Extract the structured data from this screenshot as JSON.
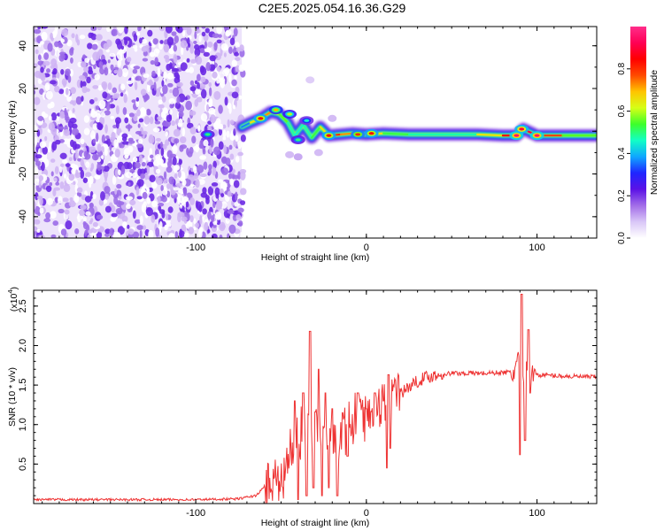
{
  "title": "C2E5.2025.054.16.36.G29",
  "colors": {
    "snr_line": "#ee3333",
    "colormap": [
      "#ffffff",
      "#d9c6f7",
      "#a26de8",
      "#5b12e6",
      "#1f25ff",
      "#0fa7ff",
      "#11ffc6",
      "#3dff2a",
      "#d6ff16",
      "#ffc400",
      "#ff4a00",
      "#ff0000",
      "#ff0055",
      "#ff2d8a"
    ]
  },
  "chart_data": [
    {
      "type": "heatmap",
      "title": "C2E5.2025.054.16.36.G29",
      "xlabel": "Height of straight line (km)",
      "ylabel": "Frequency (Hz)",
      "xlim": [
        -195,
        135
      ],
      "ylim": [
        -50,
        49
      ],
      "x_ticks": [
        -100,
        0,
        100
      ],
      "x_tick_labels": [
        "-100",
        "0",
        "100"
      ],
      "y_ticks": [
        -40,
        -20,
        0,
        20,
        40
      ],
      "y_tick_labels": [
        "-40",
        "-20",
        "0",
        "20",
        "40"
      ],
      "colorbar": {
        "label": "Normalized spectral amplitude",
        "range": [
          0,
          1
        ],
        "ticks": [
          0,
          0.2,
          0.4,
          0.6,
          0.8
        ],
        "tick_labels": [
          "0.0",
          "0.2",
          "0.4",
          "0.6",
          "0.8"
        ]
      },
      "noise_region_x": [
        -195,
        -73
      ],
      "noise_amplitude": 0.1,
      "ridge": [
        {
          "x": -73,
          "freq": 2,
          "amp": 0.18
        },
        {
          "x": -68,
          "freq": 4,
          "amp": 0.55
        },
        {
          "x": -62,
          "freq": 6,
          "amp": 0.75
        },
        {
          "x": -56,
          "freq": 9,
          "amp": 0.7
        },
        {
          "x": -51,
          "freq": 8,
          "amp": 0.6
        },
        {
          "x": -46,
          "freq": 4,
          "amp": 0.5
        },
        {
          "x": -42,
          "freq": -2,
          "amp": 0.45
        },
        {
          "x": -37,
          "freq": 3,
          "amp": 0.45
        },
        {
          "x": -32,
          "freq": -3,
          "amp": 0.5
        },
        {
          "x": -27,
          "freq": 2,
          "amp": 0.55
        },
        {
          "x": -22,
          "freq": -2,
          "amp": 0.75
        },
        {
          "x": -15,
          "freq": -1.5,
          "amp": 0.85
        },
        {
          "x": -8,
          "freq": -1,
          "amp": 0.6
        },
        {
          "x": 0,
          "freq": -1.5,
          "amp": 0.75
        },
        {
          "x": 10,
          "freq": -1,
          "amp": 0.55
        },
        {
          "x": 25,
          "freq": -1.5,
          "amp": 0.5
        },
        {
          "x": 45,
          "freq": -1.5,
          "amp": 0.45
        },
        {
          "x": 65,
          "freq": -1.5,
          "amp": 0.5
        },
        {
          "x": 80,
          "freq": -2,
          "amp": 0.8
        },
        {
          "x": 88,
          "freq": -2,
          "amp": 0.9
        },
        {
          "x": 92,
          "freq": 1,
          "amp": 0.85
        },
        {
          "x": 100,
          "freq": -2,
          "amp": 0.95
        },
        {
          "x": 115,
          "freq": -2,
          "amp": 0.6
        },
        {
          "x": 135,
          "freq": -2,
          "amp": 0.5
        }
      ],
      "blobs": [
        {
          "x": -93,
          "freq": -1.5,
          "amp": 0.5
        },
        {
          "x": -62,
          "freq": 6,
          "amp": 0.85
        },
        {
          "x": -53,
          "freq": 10,
          "amp": 0.7
        },
        {
          "x": -45,
          "freq": 8,
          "amp": 0.6
        },
        {
          "x": -40,
          "freq": -4,
          "amp": 0.5
        },
        {
          "x": -35,
          "freq": 5,
          "amp": 0.45
        },
        {
          "x": -22,
          "freq": -2,
          "amp": 0.85
        },
        {
          "x": -5,
          "freq": -1.5,
          "amp": 0.8
        },
        {
          "x": 3,
          "freq": -1,
          "amp": 0.85
        },
        {
          "x": 88,
          "freq": -2,
          "amp": 0.95
        },
        {
          "x": 91,
          "freq": 1,
          "amp": 0.9
        },
        {
          "x": 100,
          "freq": -2,
          "amp": 0.95
        }
      ],
      "scatter_blobs": [
        {
          "x": -40,
          "freq": -12,
          "amp": 0.12
        },
        {
          "x": -45,
          "freq": -11,
          "amp": 0.1
        },
        {
          "x": -33,
          "freq": 24,
          "amp": 0.08
        },
        {
          "x": -28,
          "freq": -10,
          "amp": 0.1
        },
        {
          "x": -20,
          "freq": 6,
          "amp": 0.1
        }
      ]
    },
    {
      "type": "line",
      "xlabel": "Height of straight line (km)",
      "ylabel": "SNR (10 * v/v)",
      "y_exponent_label": "(x10",
      "y_exponent_power": "4",
      "y_exponent_close": ")",
      "xlim": [
        -195,
        135
      ],
      "ylim": [
        0,
        0.27
      ],
      "x_ticks": [
        -100,
        0,
        100
      ],
      "x_tick_labels": [
        "-100",
        "0",
        "100"
      ],
      "y_ticks": [
        0.05,
        0.1,
        0.15,
        0.2,
        0.25
      ],
      "y_tick_labels": [
        "0.5",
        "1.0",
        "1.5",
        "2.0",
        "2.5"
      ],
      "series": [
        {
          "x": [
            -195,
            -150,
            -100,
            -75,
            -65,
            -60,
            -55,
            -50,
            -45,
            -40,
            -35,
            -30,
            -25,
            -20,
            -15,
            -10,
            -5,
            0,
            5,
            10,
            15,
            20,
            25,
            30,
            35,
            40,
            50,
            60,
            70,
            80,
            85,
            88,
            90,
            92,
            94,
            96,
            98,
            100,
            110,
            120,
            135
          ],
          "y": [
            0.005,
            0.005,
            0.005,
            0.006,
            0.01,
            0.02,
            0.028,
            0.038,
            0.06,
            0.08,
            0.095,
            0.1,
            0.095,
            0.09,
            0.095,
            0.1,
            0.11,
            0.115,
            0.12,
            0.128,
            0.135,
            0.14,
            0.148,
            0.155,
            0.16,
            0.162,
            0.165,
            0.165,
            0.165,
            0.166,
            0.166,
            0.17,
            0.2,
            0.14,
            0.19,
            0.17,
            0.17,
            0.163,
            0.162,
            0.161,
            0.16
          ],
          "spikes": [
            {
              "x": -42,
              "y": 0.13
            },
            {
              "x": -40,
              "y": 0.005
            },
            {
              "x": -37,
              "y": 0.14
            },
            {
              "x": -35,
              "y": 0.01
            },
            {
              "x": -33,
              "y": 0.218
            },
            {
              "x": -31,
              "y": 0.02
            },
            {
              "x": -28,
              "y": 0.17
            },
            {
              "x": -26,
              "y": 0.01
            },
            {
              "x": -24,
              "y": 0.14
            },
            {
              "x": -22,
              "y": 0.02
            },
            {
              "x": -20,
              "y": 0.12
            },
            {
              "x": -17,
              "y": 0.01
            },
            {
              "x": -14,
              "y": 0.115
            },
            {
              "x": -11,
              "y": 0.06
            },
            {
              "x": -5,
              "y": 0.14
            },
            {
              "x": 0,
              "y": 0.12
            },
            {
              "x": 5,
              "y": 0.14
            },
            {
              "x": 10,
              "y": 0.13
            },
            {
              "x": 12,
              "y": 0.045
            },
            {
              "x": 13,
              "y": 0.163
            },
            {
              "x": 14,
              "y": 0.07
            },
            {
              "x": 88,
              "y": 0.18
            },
            {
              "x": 90,
              "y": 0.062
            },
            {
              "x": 91,
              "y": 0.265
            },
            {
              "x": 93,
              "y": 0.08
            },
            {
              "x": 95,
              "y": 0.22
            },
            {
              "x": 96,
              "y": 0.14
            }
          ]
        }
      ]
    }
  ]
}
